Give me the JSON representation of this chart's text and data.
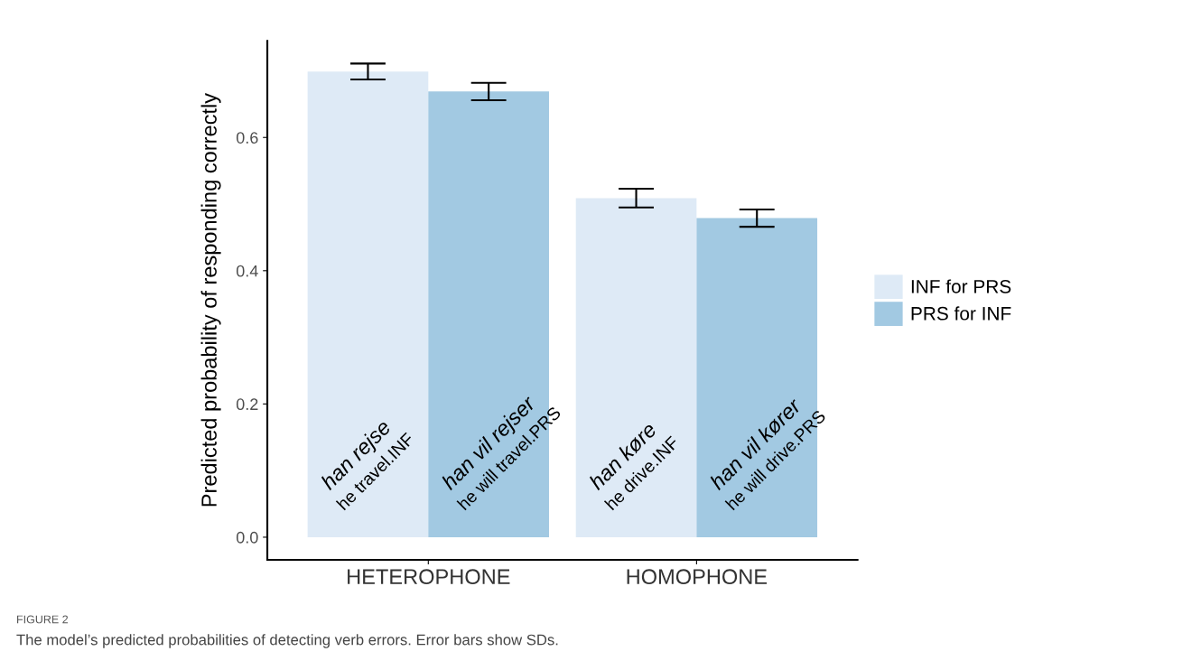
{
  "chart_data": {
    "type": "bar",
    "ylabel": "Predicted probability of responding correctly",
    "categories": [
      "HETEROPHONE",
      "HOMOPHONE"
    ],
    "series": [
      {
        "name": "INF for PRS",
        "color": "#deeaf6",
        "values": [
          0.699,
          0.509
        ],
        "errors": [
          0.012,
          0.014
        ]
      },
      {
        "name": "PRS for INF",
        "color": "#a2c9e2",
        "values": [
          0.669,
          0.479
        ],
        "errors": [
          0.013,
          0.013
        ]
      }
    ],
    "ylim": [
      -0.034,
      0.745
    ],
    "yticks": [
      {
        "value": 0,
        "label": "0.0"
      },
      0.2,
      0.4,
      0.6
    ],
    "grid": false,
    "legend": "right",
    "annotations": [
      "han rejse\nhe travel.INF",
      "han vil rejser\nhe will travel.PRS",
      "han køre\nhe drive.INF",
      "han vil kører\nhe will drive.PRS",
      "FIGURE 2",
      "The model’s predicted probabilities of detecting verb errors. Error bars show SDs."
    ]
  }
}
